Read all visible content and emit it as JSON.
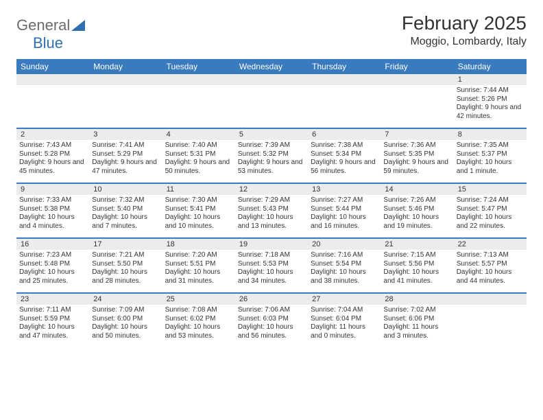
{
  "logo": {
    "text1": "General",
    "text2": "Blue"
  },
  "title": "February 2025",
  "location": "Moggio, Lombardy, Italy",
  "colors": {
    "header_bg": "#3a7bbf",
    "header_text": "#ffffff",
    "daynum_bg": "#ececec",
    "border": "#3a7bbf",
    "text": "#333333",
    "logo_gray": "#6b6b6b",
    "logo_blue": "#2f6fb0",
    "page_bg": "#ffffff"
  },
  "day_headers": [
    "Sunday",
    "Monday",
    "Tuesday",
    "Wednesday",
    "Thursday",
    "Friday",
    "Saturday"
  ],
  "weeks": [
    [
      {
        "n": "",
        "sunrise": "",
        "sunset": "",
        "daylight": ""
      },
      {
        "n": "",
        "sunrise": "",
        "sunset": "",
        "daylight": ""
      },
      {
        "n": "",
        "sunrise": "",
        "sunset": "",
        "daylight": ""
      },
      {
        "n": "",
        "sunrise": "",
        "sunset": "",
        "daylight": ""
      },
      {
        "n": "",
        "sunrise": "",
        "sunset": "",
        "daylight": ""
      },
      {
        "n": "",
        "sunrise": "",
        "sunset": "",
        "daylight": ""
      },
      {
        "n": "1",
        "sunrise": "Sunrise: 7:44 AM",
        "sunset": "Sunset: 5:26 PM",
        "daylight": "Daylight: 9 hours and 42 minutes."
      }
    ],
    [
      {
        "n": "2",
        "sunrise": "Sunrise: 7:43 AM",
        "sunset": "Sunset: 5:28 PM",
        "daylight": "Daylight: 9 hours and 45 minutes."
      },
      {
        "n": "3",
        "sunrise": "Sunrise: 7:41 AM",
        "sunset": "Sunset: 5:29 PM",
        "daylight": "Daylight: 9 hours and 47 minutes."
      },
      {
        "n": "4",
        "sunrise": "Sunrise: 7:40 AM",
        "sunset": "Sunset: 5:31 PM",
        "daylight": "Daylight: 9 hours and 50 minutes."
      },
      {
        "n": "5",
        "sunrise": "Sunrise: 7:39 AM",
        "sunset": "Sunset: 5:32 PM",
        "daylight": "Daylight: 9 hours and 53 minutes."
      },
      {
        "n": "6",
        "sunrise": "Sunrise: 7:38 AM",
        "sunset": "Sunset: 5:34 PM",
        "daylight": "Daylight: 9 hours and 56 minutes."
      },
      {
        "n": "7",
        "sunrise": "Sunrise: 7:36 AM",
        "sunset": "Sunset: 5:35 PM",
        "daylight": "Daylight: 9 hours and 59 minutes."
      },
      {
        "n": "8",
        "sunrise": "Sunrise: 7:35 AM",
        "sunset": "Sunset: 5:37 PM",
        "daylight": "Daylight: 10 hours and 1 minute."
      }
    ],
    [
      {
        "n": "9",
        "sunrise": "Sunrise: 7:33 AM",
        "sunset": "Sunset: 5:38 PM",
        "daylight": "Daylight: 10 hours and 4 minutes."
      },
      {
        "n": "10",
        "sunrise": "Sunrise: 7:32 AM",
        "sunset": "Sunset: 5:40 PM",
        "daylight": "Daylight: 10 hours and 7 minutes."
      },
      {
        "n": "11",
        "sunrise": "Sunrise: 7:30 AM",
        "sunset": "Sunset: 5:41 PM",
        "daylight": "Daylight: 10 hours and 10 minutes."
      },
      {
        "n": "12",
        "sunrise": "Sunrise: 7:29 AM",
        "sunset": "Sunset: 5:43 PM",
        "daylight": "Daylight: 10 hours and 13 minutes."
      },
      {
        "n": "13",
        "sunrise": "Sunrise: 7:27 AM",
        "sunset": "Sunset: 5:44 PM",
        "daylight": "Daylight: 10 hours and 16 minutes."
      },
      {
        "n": "14",
        "sunrise": "Sunrise: 7:26 AM",
        "sunset": "Sunset: 5:46 PM",
        "daylight": "Daylight: 10 hours and 19 minutes."
      },
      {
        "n": "15",
        "sunrise": "Sunrise: 7:24 AM",
        "sunset": "Sunset: 5:47 PM",
        "daylight": "Daylight: 10 hours and 22 minutes."
      }
    ],
    [
      {
        "n": "16",
        "sunrise": "Sunrise: 7:23 AM",
        "sunset": "Sunset: 5:48 PM",
        "daylight": "Daylight: 10 hours and 25 minutes."
      },
      {
        "n": "17",
        "sunrise": "Sunrise: 7:21 AM",
        "sunset": "Sunset: 5:50 PM",
        "daylight": "Daylight: 10 hours and 28 minutes."
      },
      {
        "n": "18",
        "sunrise": "Sunrise: 7:20 AM",
        "sunset": "Sunset: 5:51 PM",
        "daylight": "Daylight: 10 hours and 31 minutes."
      },
      {
        "n": "19",
        "sunrise": "Sunrise: 7:18 AM",
        "sunset": "Sunset: 5:53 PM",
        "daylight": "Daylight: 10 hours and 34 minutes."
      },
      {
        "n": "20",
        "sunrise": "Sunrise: 7:16 AM",
        "sunset": "Sunset: 5:54 PM",
        "daylight": "Daylight: 10 hours and 38 minutes."
      },
      {
        "n": "21",
        "sunrise": "Sunrise: 7:15 AM",
        "sunset": "Sunset: 5:56 PM",
        "daylight": "Daylight: 10 hours and 41 minutes."
      },
      {
        "n": "22",
        "sunrise": "Sunrise: 7:13 AM",
        "sunset": "Sunset: 5:57 PM",
        "daylight": "Daylight: 10 hours and 44 minutes."
      }
    ],
    [
      {
        "n": "23",
        "sunrise": "Sunrise: 7:11 AM",
        "sunset": "Sunset: 5:59 PM",
        "daylight": "Daylight: 10 hours and 47 minutes."
      },
      {
        "n": "24",
        "sunrise": "Sunrise: 7:09 AM",
        "sunset": "Sunset: 6:00 PM",
        "daylight": "Daylight: 10 hours and 50 minutes."
      },
      {
        "n": "25",
        "sunrise": "Sunrise: 7:08 AM",
        "sunset": "Sunset: 6:02 PM",
        "daylight": "Daylight: 10 hours and 53 minutes."
      },
      {
        "n": "26",
        "sunrise": "Sunrise: 7:06 AM",
        "sunset": "Sunset: 6:03 PM",
        "daylight": "Daylight: 10 hours and 56 minutes."
      },
      {
        "n": "27",
        "sunrise": "Sunrise: 7:04 AM",
        "sunset": "Sunset: 6:04 PM",
        "daylight": "Daylight: 11 hours and 0 minutes."
      },
      {
        "n": "28",
        "sunrise": "Sunrise: 7:02 AM",
        "sunset": "Sunset: 6:06 PM",
        "daylight": "Daylight: 11 hours and 3 minutes."
      },
      {
        "n": "",
        "sunrise": "",
        "sunset": "",
        "daylight": ""
      }
    ]
  ]
}
